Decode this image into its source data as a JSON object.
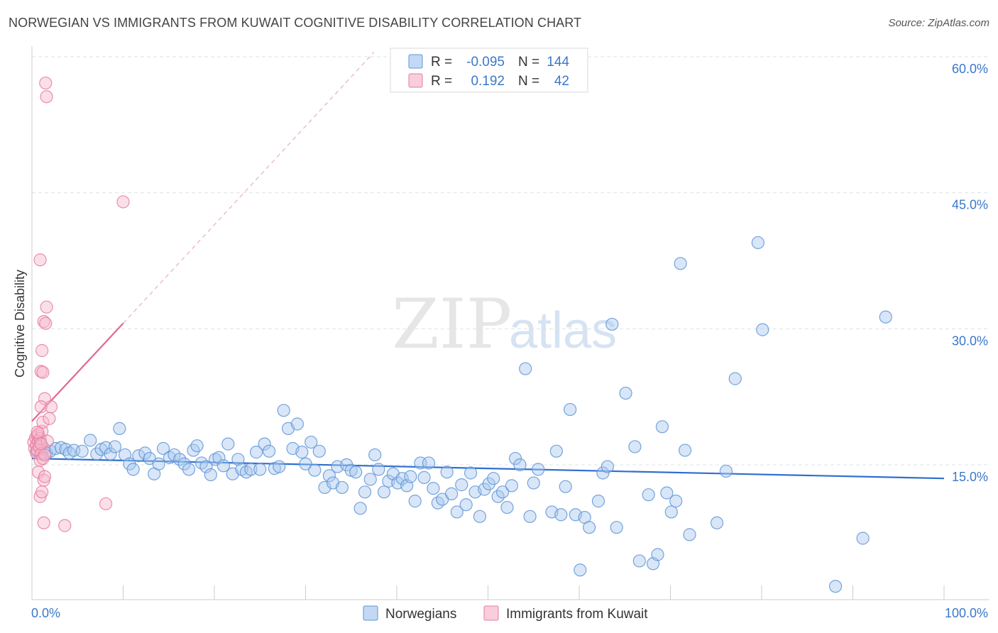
{
  "title": "NORWEGIAN VS IMMIGRANTS FROM KUWAIT COGNITIVE DISABILITY CORRELATION CHART",
  "source": "Source: ZipAtlas.com",
  "watermark": {
    "zip": "ZIP",
    "atlas": "atlas"
  },
  "colors": {
    "norwegians_fill": "#a9c8ef",
    "norwegians_stroke": "#5f95d6",
    "norwegians_line": "#2f6fce",
    "kuwait_fill": "#f6b8cc",
    "kuwait_stroke": "#e57c9f",
    "kuwait_line": "#e0688f",
    "grid": "#dde3ea",
    "axis_text": "#3a78c9"
  },
  "legend": {
    "rows": [
      {
        "r_label": "R =",
        "r_value": "-0.095",
        "n_label": "N =",
        "n_value": "144",
        "series": "norwegians"
      },
      {
        "r_label": "R =",
        "r_value": "0.192",
        "n_label": "N =",
        "n_value": "42",
        "series": "kuwait"
      }
    ]
  },
  "bottom_legend": {
    "norwegians": "Norwegians",
    "kuwait": "Immigrants from Kuwait"
  },
  "chart_data": {
    "type": "scatter",
    "title": "NORWEGIAN VS IMMIGRANTS FROM KUWAIT COGNITIVE DISABILITY CORRELATION CHART",
    "xlabel": "",
    "ylabel": "Cognitive Disability",
    "xlim": [
      0,
      100
    ],
    "ylim": [
      0,
      63
    ],
    "x_tick_labels": {
      "min": "0.0%",
      "max": "100.0%"
    },
    "y_ticks": [
      {
        "value": 15,
        "label": "15.0%"
      },
      {
        "value": 30,
        "label": "30.0%"
      },
      {
        "value": 45,
        "label": "45.0%"
      },
      {
        "value": 60,
        "label": "60.0%"
      }
    ],
    "series": [
      {
        "name": "Norwegians",
        "key": "norwegians",
        "R": -0.095,
        "N": 144,
        "trend": {
          "x": [
            0,
            100
          ],
          "y": [
            15.7,
            13.5
          ],
          "dashed_extension": false
        },
        "points": [
          [
            0.5,
            16.5
          ],
          [
            0.9,
            17.5
          ],
          [
            1.3,
            16.8
          ],
          [
            1.6,
            16.3
          ],
          [
            2.0,
            16.5
          ],
          [
            2.6,
            16.8
          ],
          [
            3.2,
            16.9
          ],
          [
            3.7,
            16.7
          ],
          [
            4.1,
            16.3
          ],
          [
            4.6,
            16.6
          ],
          [
            5.5,
            16.5
          ],
          [
            6.4,
            17.7
          ],
          [
            7.1,
            16.2
          ],
          [
            7.6,
            16.7
          ],
          [
            8.1,
            16.9
          ],
          [
            8.6,
            16.2
          ],
          [
            9.1,
            17.0
          ],
          [
            9.6,
            19.0
          ],
          [
            10.2,
            16.1
          ],
          [
            10.7,
            15.1
          ],
          [
            11.1,
            14.5
          ],
          [
            11.7,
            16.0
          ],
          [
            12.4,
            16.3
          ],
          [
            12.9,
            15.7
          ],
          [
            13.4,
            14.0
          ],
          [
            13.9,
            15.1
          ],
          [
            14.4,
            16.8
          ],
          [
            15.1,
            15.8
          ],
          [
            15.6,
            16.1
          ],
          [
            16.2,
            15.6
          ],
          [
            16.7,
            15.1
          ],
          [
            17.2,
            14.5
          ],
          [
            17.7,
            16.6
          ],
          [
            18.1,
            17.1
          ],
          [
            18.6,
            15.2
          ],
          [
            19.1,
            14.8
          ],
          [
            19.6,
            13.9
          ],
          [
            20.1,
            15.6
          ],
          [
            20.5,
            15.8
          ],
          [
            21.0,
            14.9
          ],
          [
            21.5,
            17.3
          ],
          [
            22.0,
            14.0
          ],
          [
            22.6,
            15.6
          ],
          [
            23.0,
            14.5
          ],
          [
            23.5,
            14.2
          ],
          [
            24.0,
            14.5
          ],
          [
            24.6,
            16.4
          ],
          [
            25.0,
            14.5
          ],
          [
            25.5,
            17.3
          ],
          [
            26.0,
            16.5
          ],
          [
            26.6,
            14.6
          ],
          [
            27.1,
            14.8
          ],
          [
            27.6,
            21.0
          ],
          [
            28.1,
            19.0
          ],
          [
            28.6,
            16.8
          ],
          [
            29.1,
            19.5
          ],
          [
            29.6,
            16.4
          ],
          [
            30.0,
            15.1
          ],
          [
            30.6,
            17.5
          ],
          [
            31.0,
            14.4
          ],
          [
            31.5,
            16.5
          ],
          [
            32.1,
            12.5
          ],
          [
            32.6,
            13.8
          ],
          [
            33.0,
            13.0
          ],
          [
            33.5,
            14.8
          ],
          [
            34.0,
            12.5
          ],
          [
            34.5,
            15.0
          ],
          [
            35.0,
            14.4
          ],
          [
            35.5,
            14.2
          ],
          [
            36.0,
            10.2
          ],
          [
            36.5,
            12.0
          ],
          [
            37.1,
            13.4
          ],
          [
            37.6,
            16.1
          ],
          [
            38.0,
            14.5
          ],
          [
            38.6,
            12.0
          ],
          [
            39.1,
            13.2
          ],
          [
            39.6,
            14.0
          ],
          [
            40.1,
            13.0
          ],
          [
            40.6,
            13.5
          ],
          [
            41.1,
            12.7
          ],
          [
            41.5,
            13.7
          ],
          [
            42.0,
            11.0
          ],
          [
            42.6,
            15.2
          ],
          [
            43.0,
            13.6
          ],
          [
            43.5,
            15.2
          ],
          [
            44.0,
            12.4
          ],
          [
            44.5,
            10.8
          ],
          [
            45.0,
            11.2
          ],
          [
            45.5,
            14.2
          ],
          [
            46.0,
            11.8
          ],
          [
            46.6,
            9.8
          ],
          [
            47.1,
            12.8
          ],
          [
            47.6,
            10.6
          ],
          [
            48.1,
            14.1
          ],
          [
            48.6,
            12.0
          ],
          [
            49.1,
            9.3
          ],
          [
            49.6,
            12.3
          ],
          [
            50.1,
            12.9
          ],
          [
            50.6,
            13.5
          ],
          [
            51.1,
            11.5
          ],
          [
            51.6,
            12.0
          ],
          [
            52.1,
            10.3
          ],
          [
            52.6,
            12.7
          ],
          [
            53.0,
            15.7
          ],
          [
            53.5,
            15.0
          ],
          [
            54.1,
            25.6
          ],
          [
            54.6,
            9.3
          ],
          [
            55.0,
            13.0
          ],
          [
            55.5,
            14.5
          ],
          [
            57.0,
            9.8
          ],
          [
            57.5,
            16.5
          ],
          [
            58.0,
            9.5
          ],
          [
            58.5,
            12.6
          ],
          [
            59.0,
            21.1
          ],
          [
            59.6,
            9.5
          ],
          [
            60.1,
            3.4
          ],
          [
            60.6,
            9.2
          ],
          [
            61.1,
            8.1
          ],
          [
            62.1,
            11.0
          ],
          [
            62.6,
            14.1
          ],
          [
            63.1,
            14.8
          ],
          [
            63.6,
            30.5
          ],
          [
            64.1,
            8.1
          ],
          [
            65.1,
            22.9
          ],
          [
            66.1,
            17.0
          ],
          [
            66.6,
            4.4
          ],
          [
            67.6,
            11.7
          ],
          [
            68.1,
            4.1
          ],
          [
            68.6,
            5.1
          ],
          [
            69.1,
            19.2
          ],
          [
            69.6,
            11.9
          ],
          [
            70.1,
            9.8
          ],
          [
            70.6,
            11.0
          ],
          [
            71.1,
            37.2
          ],
          [
            71.6,
            16.6
          ],
          [
            72.1,
            7.3
          ],
          [
            75.1,
            8.6
          ],
          [
            76.1,
            14.3
          ],
          [
            77.1,
            24.5
          ],
          [
            79.6,
            39.5
          ],
          [
            80.1,
            29.9
          ],
          [
            88.1,
            1.6
          ],
          [
            91.1,
            6.9
          ],
          [
            93.6,
            31.3
          ]
        ]
      },
      {
        "name": "Immigrants from Kuwait",
        "key": "kuwait",
        "R": 0.192,
        "N": 42,
        "trend": {
          "x": [
            0,
            10
          ],
          "y": [
            19.8,
            30.6
          ],
          "dashed_extension": {
            "x": [
              10,
              37.5
            ],
            "y": [
              30.6,
              60.5
            ]
          }
        },
        "points": [
          [
            0.2,
            17.5
          ],
          [
            0.3,
            16.8
          ],
          [
            0.4,
            18.0
          ],
          [
            0.5,
            16.3
          ],
          [
            0.5,
            17.2
          ],
          [
            0.6,
            18.2
          ],
          [
            0.6,
            16.6
          ],
          [
            0.7,
            17.6
          ],
          [
            0.7,
            18.4
          ],
          [
            0.8,
            17.0
          ],
          [
            0.9,
            17.9
          ],
          [
            1.0,
            16.2
          ],
          [
            1.1,
            18.7
          ],
          [
            1.2,
            19.7
          ],
          [
            0.7,
            14.2
          ],
          [
            0.9,
            11.5
          ],
          [
            1.1,
            12.0
          ],
          [
            1.3,
            13.3
          ],
          [
            1.4,
            13.7
          ],
          [
            0.9,
            37.6
          ],
          [
            1.0,
            25.3
          ],
          [
            1.1,
            27.6
          ],
          [
            1.2,
            25.2
          ],
          [
            1.3,
            30.8
          ],
          [
            1.5,
            30.6
          ],
          [
            1.6,
            32.4
          ],
          [
            1.4,
            22.3
          ],
          [
            1.0,
            21.4
          ],
          [
            1.7,
            17.6
          ],
          [
            1.9,
            20.1
          ],
          [
            2.1,
            21.4
          ],
          [
            1.3,
            8.6
          ],
          [
            3.6,
            8.3
          ],
          [
            8.1,
            10.7
          ],
          [
            10.0,
            44.0
          ],
          [
            1.5,
            57.1
          ],
          [
            1.6,
            55.6
          ],
          [
            0.9,
            15.5
          ],
          [
            1.2,
            15.7
          ],
          [
            1.4,
            16.1
          ],
          [
            0.6,
            18.6
          ],
          [
            1.0,
            17.3
          ]
        ]
      }
    ]
  }
}
